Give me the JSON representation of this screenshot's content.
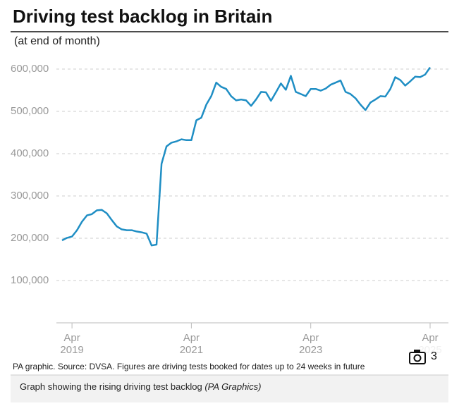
{
  "chart_data": {
    "type": "line",
    "title": "Driving test backlog in Britain",
    "subtitle": "(at end of month)",
    "source": "PA graphic. Source: DVSA. Figures are driving tests booked for dates up to 24 weeks in future",
    "x": [
      "2019-02",
      "2019-03",
      "2019-04",
      "2019-05",
      "2019-06",
      "2019-07",
      "2019-08",
      "2019-09",
      "2019-10",
      "2019-11",
      "2019-12",
      "2020-01",
      "2020-02",
      "2020-03",
      "2020-04",
      "2020-05",
      "2020-06",
      "2020-07",
      "2020-08",
      "2020-09",
      "2020-10",
      "2020-11",
      "2020-12",
      "2021-01",
      "2021-02",
      "2021-03",
      "2021-04",
      "2021-05",
      "2021-06",
      "2021-07",
      "2021-08",
      "2021-09",
      "2021-10",
      "2021-11",
      "2021-12",
      "2022-01",
      "2022-02",
      "2022-03",
      "2022-04",
      "2022-05",
      "2022-06",
      "2022-07",
      "2022-08",
      "2022-09",
      "2022-10",
      "2022-11",
      "2022-12",
      "2023-01",
      "2023-02",
      "2023-03",
      "2023-04",
      "2023-05",
      "2023-06",
      "2023-07",
      "2023-08",
      "2023-09",
      "2023-10",
      "2023-11",
      "2023-12",
      "2024-01",
      "2024-02",
      "2024-03",
      "2024-04",
      "2024-05",
      "2024-06",
      "2024-07",
      "2024-08",
      "2024-09",
      "2024-10",
      "2024-11",
      "2024-12",
      "2025-01",
      "2025-02",
      "2025-03",
      "2025-04"
    ],
    "series": [
      {
        "color": "#1f8ec4",
        "values": [
          195000,
          201000,
          204000,
          219000,
          239000,
          254000,
          257000,
          266000,
          267000,
          259000,
          243000,
          228000,
          221000,
          219000,
          219000,
          216000,
          214000,
          211000,
          183000,
          185000,
          376000,
          417000,
          426000,
          429000,
          434000,
          432000,
          432000,
          479000,
          485000,
          516000,
          536000,
          568000,
          558000,
          553000,
          536000,
          526000,
          528000,
          526000,
          513000,
          528000,
          546000,
          545000,
          525000,
          545000,
          566000,
          551000,
          584000,
          546000,
          541000,
          536000,
          553000,
          553000,
          549000,
          554000,
          563000,
          568000,
          573000,
          546000,
          541000,
          531000,
          516000,
          503000,
          521000,
          528000,
          536000,
          535000,
          553000,
          581000,
          574000,
          561000,
          571000,
          582000,
          581000,
          587000,
          604000
        ]
      }
    ],
    "xlim": [
      "2019-02",
      "2025-04"
    ],
    "xticks": [
      {
        "value": "2019-04",
        "label": "Apr 2019"
      },
      {
        "value": "2021-04",
        "label": "Apr 2021"
      },
      {
        "value": "2023-04",
        "label": "Apr 2023"
      },
      {
        "value": "2025-04",
        "label": "Apr 2025"
      }
    ],
    "ylim": [
      0,
      620000
    ],
    "yticks": [
      {
        "value": 100000,
        "label": "100,000"
      },
      {
        "value": 200000,
        "label": "200,000"
      },
      {
        "value": 300000,
        "label": "300,000"
      },
      {
        "value": 400000,
        "label": "400,000"
      },
      {
        "value": 500000,
        "label": "500,000"
      },
      {
        "value": 600000,
        "label": "600,000"
      }
    ],
    "grid": true
  },
  "caption": {
    "text": "Graph showing the rising driving test backlog",
    "credit": "(PA Graphics)"
  },
  "gallery_count": "3"
}
